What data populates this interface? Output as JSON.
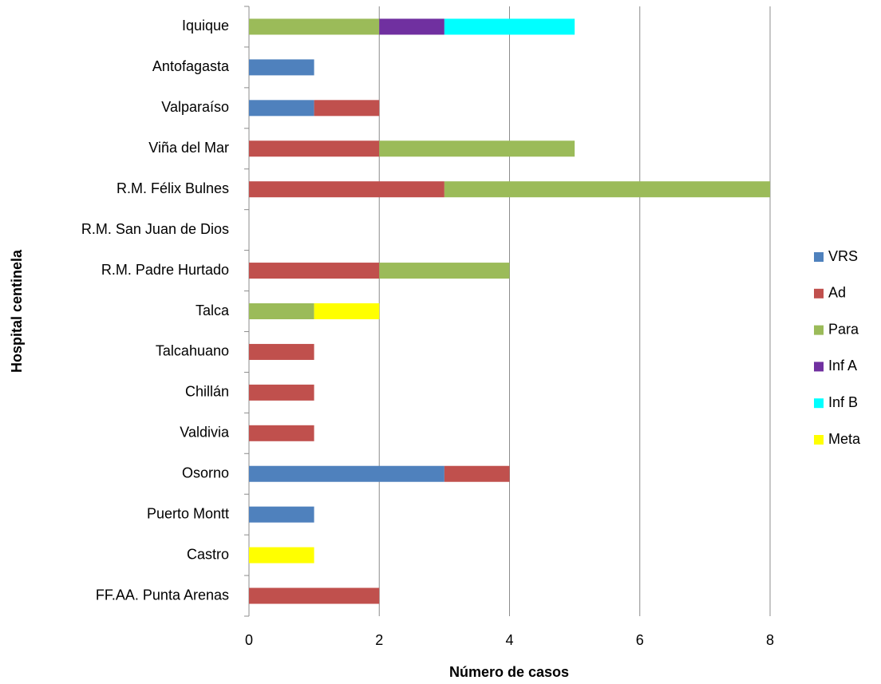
{
  "chart_data": {
    "type": "stacked-bar-horizontal",
    "x_label": "Número de casos",
    "y_label": "Hospital centinela",
    "categories": [
      "Iquique",
      "Antofagasta",
      "Valparaíso",
      "Viña del Mar",
      "R.M. Félix Bulnes",
      "R.M. San Juan de Dios",
      "R.M. Padre Hurtado",
      "Talca",
      "Talcahuano",
      "Chillán",
      "Valdivia",
      "Osorno",
      "Puerto Montt",
      "Castro",
      "FF.AA. Punta Arenas"
    ],
    "series": [
      {
        "name": "VRS",
        "color": "#4f81bd",
        "values": [
          0,
          1,
          1,
          0,
          0,
          0,
          0,
          0,
          0,
          0,
          0,
          3,
          1,
          0,
          0
        ]
      },
      {
        "name": "Ad",
        "color": "#c0504d",
        "values": [
          0,
          0,
          1,
          2,
          3,
          0,
          2,
          0,
          1,
          1,
          1,
          1,
          0,
          0,
          2
        ]
      },
      {
        "name": "Para",
        "color": "#9bbb59",
        "values": [
          2,
          0,
          0,
          3,
          5,
          0,
          2,
          1,
          0,
          0,
          0,
          0,
          0,
          0,
          0
        ]
      },
      {
        "name": "Inf A",
        "color": "#7030a0",
        "values": [
          1,
          0,
          0,
          0,
          0,
          0,
          0,
          0,
          0,
          0,
          0,
          0,
          0,
          0,
          0
        ]
      },
      {
        "name": "Inf B",
        "color": "#00ffff",
        "values": [
          2,
          0,
          0,
          0,
          0,
          0,
          0,
          0,
          0,
          0,
          0,
          0,
          0,
          0,
          0
        ]
      },
      {
        "name": "Meta",
        "color": "#ffff00",
        "values": [
          0,
          0,
          0,
          0,
          0,
          0,
          0,
          1,
          0,
          0,
          0,
          0,
          0,
          1,
          0
        ]
      }
    ],
    "xlim": [
      0,
      8
    ],
    "xticks": [
      0,
      2,
      4,
      6,
      8
    ],
    "grid": true,
    "legend": "right"
  }
}
